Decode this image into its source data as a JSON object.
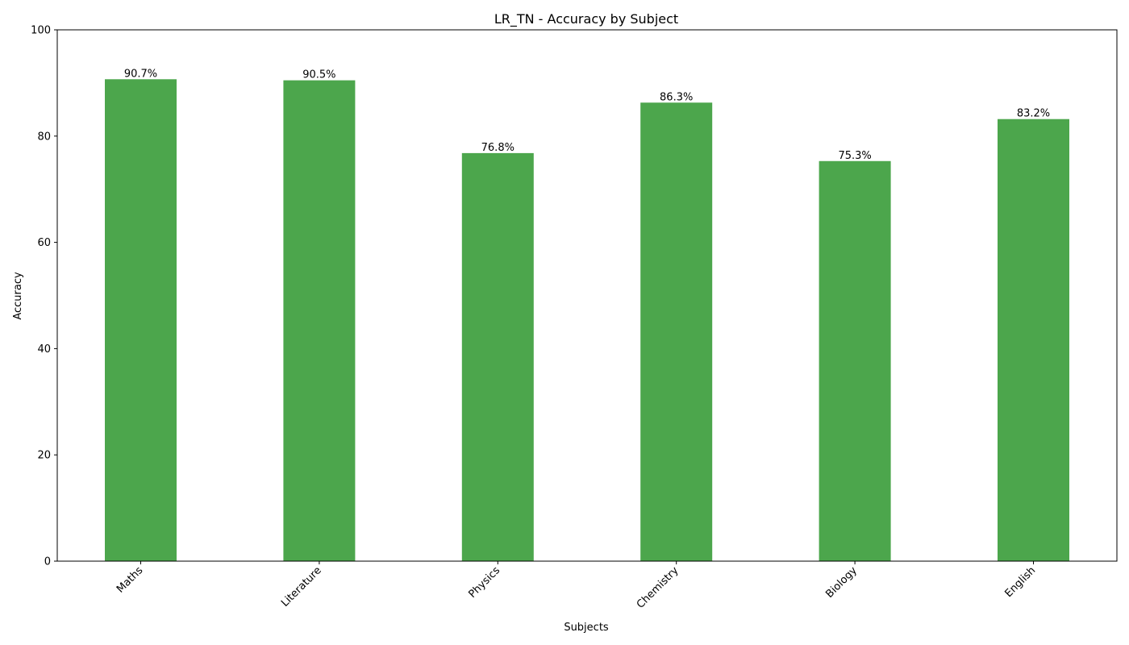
{
  "chart_data": {
    "type": "bar",
    "title": "LR_TN - Accuracy by Subject",
    "xlabel": "Subjects",
    "ylabel": "Accuracy",
    "categories": [
      "Maths",
      "Literature",
      "Physics",
      "Chemistry",
      "Biology",
      "English"
    ],
    "values": [
      90.7,
      90.5,
      76.8,
      86.3,
      75.3,
      83.2
    ],
    "data_labels": [
      "90.7%",
      "90.5%",
      "76.8%",
      "86.3%",
      "75.3%",
      "83.2%"
    ],
    "ylim": [
      0,
      100
    ],
    "yticks": [
      0,
      20,
      40,
      60,
      80,
      100
    ],
    "bar_color": "#4ca64c",
    "grid": false,
    "legend": "none"
  }
}
